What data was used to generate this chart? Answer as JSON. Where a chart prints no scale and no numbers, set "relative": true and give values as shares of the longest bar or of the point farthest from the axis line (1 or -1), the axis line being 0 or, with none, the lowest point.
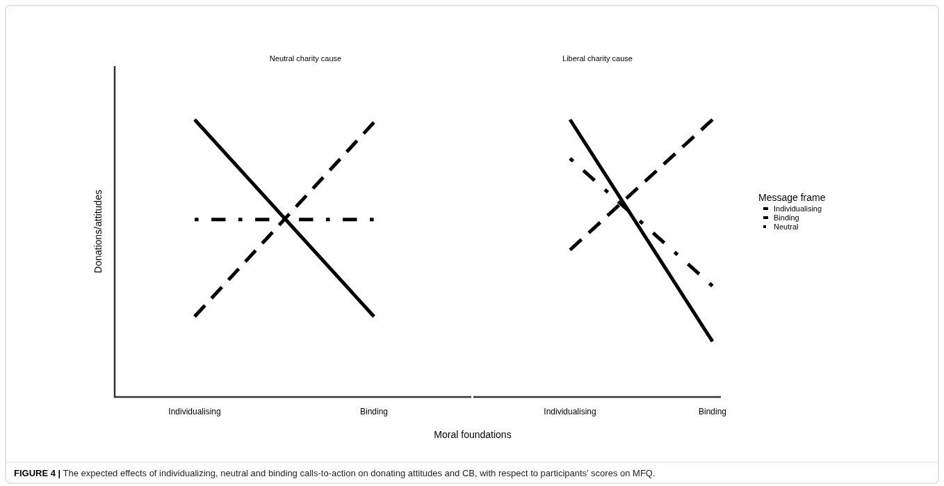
{
  "chart_data": [
    {
      "type": "line",
      "title": "Neutral charity cause",
      "ylabel": "Donations/attitudes",
      "xlabel": "Moral foundations",
      "categories": [
        "Individualising",
        "Binding"
      ],
      "relative": true,
      "tick_labels": "x",
      "legend": false,
      "annotations": [
        "FIGURE 4 | The expected effects of individualizing, neutral and binding calls-to-action on donating attitudes and CB, with respect to participants’ scores on MFQ."
      ],
      "series": [
        {
          "color": "#000000",
          "line_style": "solid",
          "values": [
            1.0,
            0.29
          ]
        },
        {
          "color": "#000000",
          "line_style": "dashed",
          "values": [
            0.29,
            0.99
          ]
        },
        {
          "color": "#000000",
          "line_style": "dashdot",
          "values": [
            0.64,
            0.64
          ]
        }
      ]
    },
    {
      "type": "line",
      "title": "Liberal charity cause",
      "categories": [
        "Individualising",
        "Binding"
      ],
      "relative": true,
      "tick_labels": "x",
      "legend": "right",
      "legend_title": "Message frame",
      "series": [
        {
          "name": "Individualising",
          "color": "#000000",
          "line_style": "solid",
          "values": [
            1.0,
            0.2
          ]
        },
        {
          "name": "Binding",
          "color": "#000000",
          "line_style": "dashed",
          "values": [
            0.53,
            1.0
          ]
        },
        {
          "name": "Neutral",
          "color": "#000000",
          "line_style": "dashdot",
          "values": [
            0.86,
            0.4
          ]
        }
      ]
    }
  ]
}
